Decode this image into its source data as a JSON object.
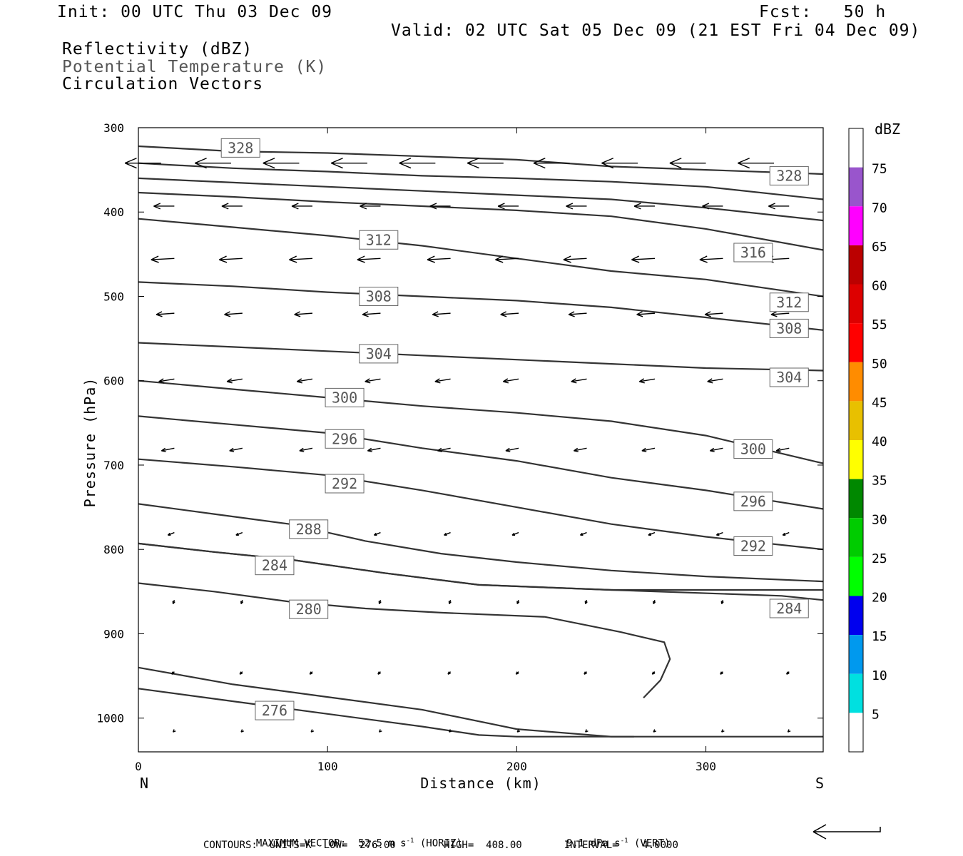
{
  "header": {
    "init": "Init: 00 UTC Thu 03 Dec 09",
    "fcst": "Fcst:   50 h",
    "valid": "Valid: 02 UTC Sat 05 Dec 09 (21 EST Fri 04 Dec 09)"
  },
  "fields": {
    "f1": "Reflectivity (dBZ)",
    "f2": "Potential Temperature (K)",
    "f3": "Circulation Vectors"
  },
  "chart_data": {
    "type": "contour",
    "xlabel": "Distance (km)",
    "ylabel": "Pressure (hPa)",
    "xlim": [
      0,
      362
    ],
    "ylim": [
      300,
      1040
    ],
    "x_ticks": [
      0,
      100,
      200,
      300
    ],
    "y_ticks": [
      300,
      400,
      500,
      600,
      700,
      800,
      900,
      1000
    ],
    "x_end_labels": {
      "left": "N",
      "right": "S"
    },
    "contours": [
      {
        "level": 276,
        "label": "276",
        "points": [
          [
            0,
            965
          ],
          [
            50,
            980
          ],
          [
            100,
            995
          ],
          [
            150,
            1010
          ],
          [
            180,
            1020
          ],
          [
            200,
            1022
          ],
          [
            262,
            1022
          ]
        ]
      },
      {
        "level": 280,
        "label": "280",
        "points": [
          [
            0,
            940
          ],
          [
            50,
            960
          ],
          [
            100,
            975
          ],
          [
            150,
            990
          ],
          [
            200,
            1013
          ],
          [
            250,
            1022
          ],
          [
            362,
            1022
          ]
        ]
      },
      {
        "level": 280,
        "label": "",
        "points": [
          [
            0,
            840
          ],
          [
            40,
            850
          ],
          [
            80,
            862
          ],
          [
            120,
            870
          ],
          [
            160,
            875
          ],
          [
            215,
            880
          ],
          [
            255,
            898
          ],
          [
            278,
            910
          ],
          [
            281,
            930
          ],
          [
            276,
            955
          ],
          [
            267,
            976
          ]
        ]
      },
      {
        "level": 284,
        "label": "284",
        "points": [
          [
            0,
            793
          ],
          [
            40,
            803
          ],
          [
            80,
            812
          ],
          [
            130,
            828
          ],
          [
            180,
            842
          ],
          [
            250,
            848
          ],
          [
            362,
            848
          ]
        ]
      },
      {
        "level": 284,
        "label": "284",
        "points": [
          [
            0,
            793
          ],
          [
            40,
            803
          ],
          [
            80,
            812
          ],
          [
            130,
            828
          ],
          [
            180,
            842
          ],
          [
            250,
            848
          ],
          [
            340,
            855
          ],
          [
            362,
            860
          ]
        ]
      },
      {
        "level": 288,
        "label": "288",
        "points": [
          [
            0,
            746
          ],
          [
            40,
            758
          ],
          [
            80,
            770
          ],
          [
            120,
            790
          ],
          [
            160,
            805
          ],
          [
            200,
            815
          ],
          [
            250,
            825
          ],
          [
            300,
            832
          ],
          [
            362,
            838
          ]
        ]
      },
      {
        "level": 292,
        "label": "292",
        "points": [
          [
            0,
            693
          ],
          [
            50,
            702
          ],
          [
            100,
            712
          ],
          [
            150,
            730
          ],
          [
            200,
            750
          ],
          [
            250,
            770
          ],
          [
            300,
            785
          ],
          [
            362,
            800
          ]
        ]
      },
      {
        "level": 296,
        "label": "296",
        "points": [
          [
            0,
            642
          ],
          [
            50,
            652
          ],
          [
            100,
            662
          ],
          [
            150,
            680
          ],
          [
            200,
            695
          ],
          [
            250,
            715
          ],
          [
            300,
            730
          ],
          [
            362,
            752
          ]
        ]
      },
      {
        "level": 300,
        "label": "300",
        "points": [
          [
            0,
            600
          ],
          [
            50,
            610
          ],
          [
            100,
            620
          ],
          [
            150,
            630
          ],
          [
            200,
            638
          ],
          [
            250,
            648
          ],
          [
            300,
            665
          ],
          [
            362,
            698
          ]
        ]
      },
      {
        "level": 304,
        "label": "304",
        "points": [
          [
            0,
            555
          ],
          [
            50,
            560
          ],
          [
            100,
            565
          ],
          [
            150,
            570
          ],
          [
            200,
            575
          ],
          [
            250,
            580
          ],
          [
            300,
            585
          ],
          [
            362,
            588
          ]
        ]
      },
      {
        "level": 308,
        "label": "308",
        "points": [
          [
            0,
            483
          ],
          [
            50,
            488
          ],
          [
            100,
            495
          ],
          [
            150,
            500
          ],
          [
            200,
            505
          ],
          [
            250,
            513
          ],
          [
            300,
            525
          ],
          [
            362,
            540
          ]
        ]
      },
      {
        "level": 312,
        "label": "312",
        "points": [
          [
            0,
            408
          ],
          [
            50,
            418
          ],
          [
            100,
            428
          ],
          [
            150,
            440
          ],
          [
            200,
            455
          ],
          [
            250,
            470
          ],
          [
            300,
            480
          ],
          [
            362,
            500
          ]
        ]
      },
      {
        "level": 316,
        "label": "316",
        "points": [
          [
            0,
            377
          ],
          [
            50,
            382
          ],
          [
            100,
            388
          ],
          [
            150,
            393
          ],
          [
            200,
            398
          ],
          [
            250,
            405
          ],
          [
            300,
            420
          ],
          [
            362,
            445
          ]
        ]
      },
      {
        "level": 320,
        "label": "",
        "points": [
          [
            0,
            360
          ],
          [
            50,
            365
          ],
          [
            100,
            370
          ],
          [
            150,
            375
          ],
          [
            200,
            380
          ],
          [
            250,
            385
          ],
          [
            300,
            395
          ],
          [
            362,
            410
          ]
        ]
      },
      {
        "level": 324,
        "label": "",
        "points": [
          [
            0,
            342
          ],
          [
            50,
            348
          ],
          [
            100,
            352
          ],
          [
            150,
            357
          ],
          [
            200,
            360
          ],
          [
            250,
            364
          ],
          [
            300,
            370
          ],
          [
            362,
            385
          ]
        ]
      },
      {
        "level": 328,
        "label": "328",
        "points": [
          [
            0,
            322
          ],
          [
            50,
            328
          ],
          [
            100,
            330
          ],
          [
            150,
            334
          ],
          [
            200,
            338
          ],
          [
            250,
            346
          ],
          [
            300,
            350
          ],
          [
            362,
            355
          ]
        ]
      }
    ],
    "contour_labels": [
      {
        "text": "328",
        "x": 54,
        "y": 324
      },
      {
        "text": "328",
        "x": 344,
        "y": 357
      },
      {
        "text": "312",
        "x": 127,
        "y": 433
      },
      {
        "text": "316",
        "x": 325,
        "y": 448
      },
      {
        "text": "312",
        "x": 344,
        "y": 507
      },
      {
        "text": "308",
        "x": 127,
        "y": 500
      },
      {
        "text": "308",
        "x": 344,
        "y": 538
      },
      {
        "text": "304",
        "x": 127,
        "y": 568
      },
      {
        "text": "304",
        "x": 344,
        "y": 596
      },
      {
        "text": "300",
        "x": 109,
        "y": 620
      },
      {
        "text": "300",
        "x": 325,
        "y": 681
      },
      {
        "text": "296",
        "x": 109,
        "y": 669
      },
      {
        "text": "296",
        "x": 325,
        "y": 743
      },
      {
        "text": "292",
        "x": 109,
        "y": 722
      },
      {
        "text": "292",
        "x": 325,
        "y": 796
      },
      {
        "text": "288",
        "x": 90,
        "y": 776
      },
      {
        "text": "284",
        "x": 72,
        "y": 819
      },
      {
        "text": "284",
        "x": 344,
        "y": 870
      },
      {
        "text": "280",
        "x": 90,
        "y": 871
      },
      {
        "text": "276",
        "x": 72,
        "y": 991
      }
    ],
    "vectors": [
      {
        "y": 342,
        "x_positions": [
          12,
          49,
          85,
          121,
          157,
          193,
          228,
          264,
          300,
          336
        ],
        "u": -28,
        "v": 0
      },
      {
        "y": 393,
        "x_positions": [
          19,
          55,
          92,
          128,
          165,
          201,
          237,
          273,
          309,
          344
        ],
        "u": -16,
        "v": 0
      },
      {
        "y": 455,
        "x_positions": [
          19,
          55,
          92,
          128,
          165,
          201,
          237,
          273,
          309,
          344
        ],
        "u": -18,
        "v": 1
      },
      {
        "y": 520,
        "x_positions": [
          19,
          55,
          92,
          128,
          165,
          201,
          237,
          273,
          309,
          344
        ],
        "u": -14,
        "v": 1
      },
      {
        "y": 598,
        "x_positions": [
          19,
          55,
          92,
          128,
          165,
          201,
          237,
          273,
          309,
          344
        ],
        "u": -12,
        "v": 2
      },
      {
        "y": 680,
        "x_positions": [
          19,
          55,
          92,
          128,
          165,
          201,
          237,
          273,
          309,
          344
        ],
        "u": -10,
        "v": 2
      },
      {
        "y": 780,
        "x_positions": [
          19,
          55,
          92,
          128,
          165,
          201,
          237,
          273,
          309,
          344
        ],
        "u": -5,
        "v": 2
      },
      {
        "y": 860,
        "x_positions": [
          19,
          55,
          92,
          128,
          165,
          201,
          237,
          273,
          309,
          344
        ],
        "u": -1,
        "v": 3
      },
      {
        "y": 945,
        "x_positions": [
          19,
          55,
          92,
          128,
          165,
          201,
          237,
          273,
          309,
          344
        ],
        "u": -2,
        "v": 2
      },
      {
        "y": 1015,
        "x_positions": [
          19,
          55,
          92,
          128,
          165,
          201,
          237,
          273,
          309,
          344
        ],
        "u": -1,
        "v": 1
      }
    ],
    "colorbar": {
      "title": "dBZ",
      "levels": [
        "5",
        "10",
        "15",
        "20",
        "25",
        "30",
        "35",
        "40",
        "45",
        "50",
        "55",
        "60",
        "65",
        "70",
        "75"
      ],
      "colors": [
        "#ffffff",
        "#00e0e0",
        "#0099ee",
        "#0000ee",
        "#00ff00",
        "#00cc00",
        "#008800",
        "#ffff00",
        "#e8c000",
        "#ff8c00",
        "#ff0000",
        "#dd0000",
        "#bb0000",
        "#ff00ff",
        "#9955cc",
        "#ffffff"
      ]
    }
  },
  "footer": {
    "max_vector_label": "MAXIMUM VECTOR:",
    "max_vector_horiz": "52.5 m s",
    "horiz_unit": "(HORIZ)",
    "max_vector_vert": "9.1 dPa s",
    "vert_unit": "(VERT)",
    "exponent": "-1",
    "contours": "CONTOURS:  UNITS=K  LOW=  276.00        HIGH=  408.00       INTERVAL=    4.0000"
  }
}
